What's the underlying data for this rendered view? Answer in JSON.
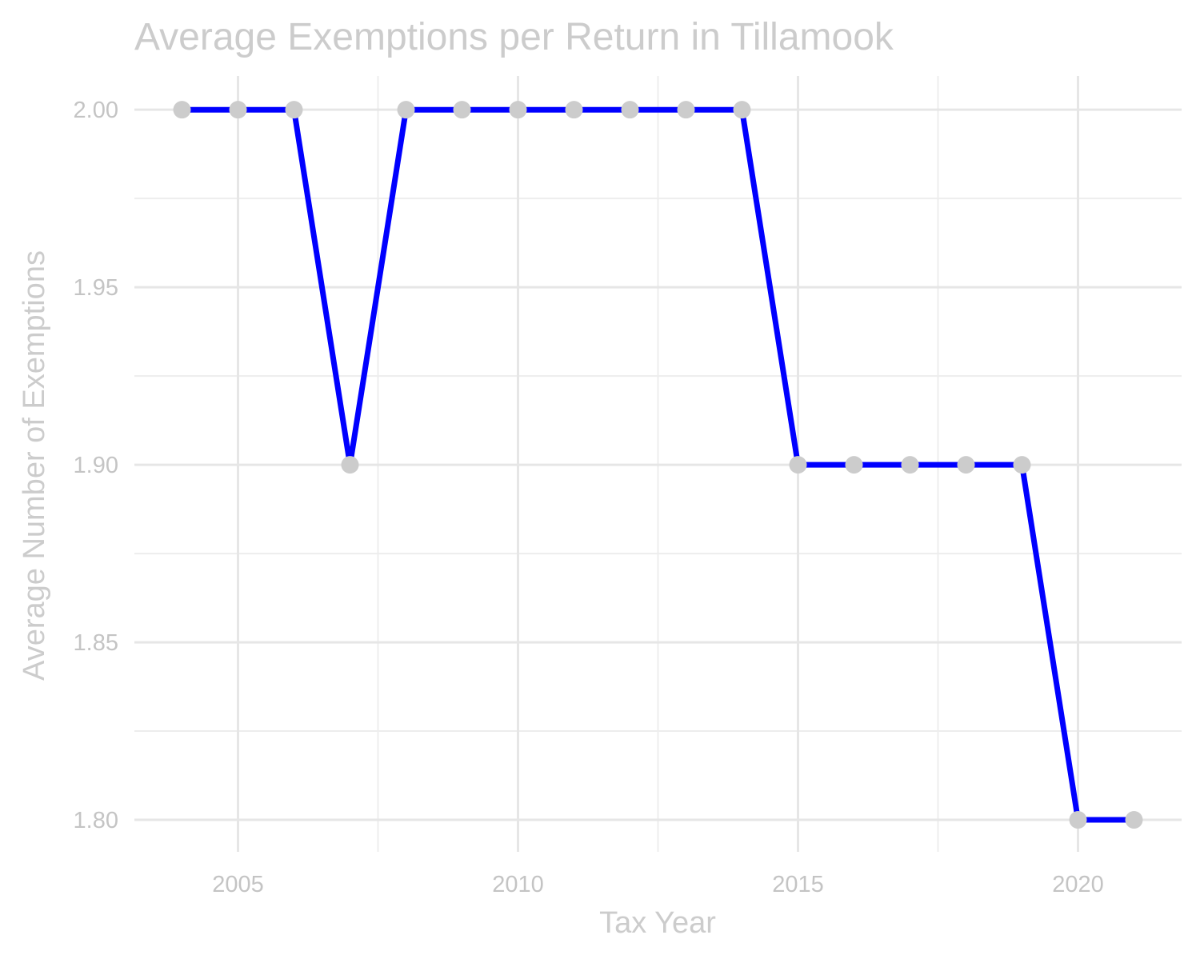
{
  "chart_data": {
    "type": "line",
    "title": "Average Exemptions per Return in Tillamook",
    "xlabel": "Tax Year",
    "ylabel": "Average Number of Exemptions",
    "x": [
      2004,
      2005,
      2006,
      2007,
      2008,
      2009,
      2010,
      2011,
      2012,
      2013,
      2014,
      2015,
      2016,
      2017,
      2018,
      2019,
      2020,
      2021
    ],
    "series": [
      {
        "values": [
          2.0,
          2.0,
          2.0,
          1.9,
          2.0,
          2.0,
          2.0,
          2.0,
          2.0,
          2.0,
          2.0,
          1.9,
          1.9,
          1.9,
          1.9,
          1.9,
          1.8,
          1.8
        ],
        "line_color": "#0000ff",
        "point_color": "#cccccc"
      }
    ],
    "xlim": [
      2003.15,
      2021.85
    ],
    "ylim": [
      1.791,
      2.0095
    ],
    "x_ticks": [
      2005,
      2010,
      2015,
      2020
    ],
    "x_tick_labels": [
      "2005",
      "2010",
      "2015",
      "2020"
    ],
    "x_minor_ticks": [
      2007.5,
      2012.5,
      2017.5
    ],
    "y_ticks": [
      1.8,
      1.85,
      1.9,
      1.95,
      2.0
    ],
    "y_tick_labels": [
      "1.80",
      "1.85",
      "1.90",
      "1.95",
      "2.00"
    ],
    "y_minor_ticks": [
      1.825,
      1.875,
      1.925,
      1.975
    ],
    "grid": true,
    "legend": "none",
    "text_color": "#cccccc",
    "grid_color": "#e6e6e6"
  }
}
